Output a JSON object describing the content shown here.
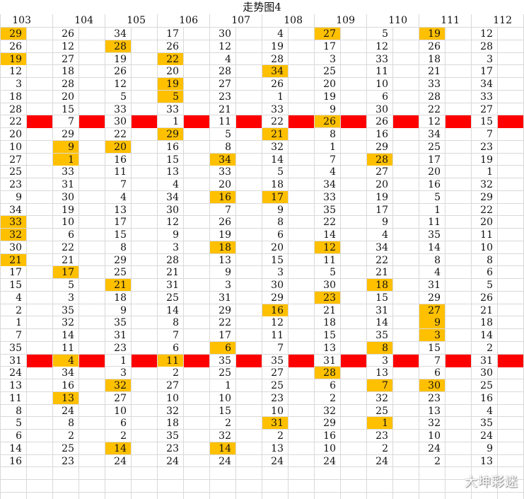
{
  "title": "走势图4",
  "columns": [
    "103",
    "104",
    "105",
    "106",
    "107",
    "108",
    "109",
    "110",
    "111",
    "112"
  ],
  "colors": {
    "highlight": "#FFC000",
    "bar": "#FF0000",
    "grid": "#D9D9D9"
  },
  "watermark": "大坤彩迷",
  "rows": [
    {
      "v": [
        "29",
        "26",
        "34",
        "17",
        "30",
        "4",
        "27",
        "5",
        "19",
        "12"
      ],
      "h": [
        0,
        6,
        8
      ]
    },
    {
      "v": [
        "26",
        "12",
        "28",
        "26",
        "12",
        "19",
        "17",
        "12",
        "26",
        "28"
      ],
      "h": [
        2
      ]
    },
    {
      "v": [
        "19",
        "27",
        "19",
        "22",
        "4",
        "28",
        "3",
        "33",
        "18",
        "3"
      ],
      "h": [
        0,
        3
      ]
    },
    {
      "v": [
        "12",
        "18",
        "26",
        "20",
        "28",
        "34",
        "25",
        "11",
        "21",
        "17"
      ],
      "h": [
        5
      ]
    },
    {
      "v": [
        "3",
        "28",
        "12",
        "19",
        "27",
        "26",
        "20",
        "10",
        "33",
        "34"
      ],
      "h": [
        3
      ]
    },
    {
      "v": [
        "18",
        "20",
        "5",
        "5",
        "23",
        "1",
        "19",
        "6",
        "28",
        "33"
      ],
      "h": [
        3
      ]
    },
    {
      "v": [
        "28",
        "15",
        "33",
        "33",
        "21",
        "33",
        "9",
        "30",
        "22",
        "27"
      ],
      "h": []
    },
    {
      "v": [
        "22",
        "7",
        "30",
        "1",
        "11",
        "22",
        "26",
        "26",
        "12",
        "15"
      ],
      "h": [
        6
      ],
      "bar": true
    },
    {
      "v": [
        "20",
        "29",
        "22",
        "29",
        "5",
        "21",
        "8",
        "16",
        "34",
        "7"
      ],
      "h": [
        3,
        5
      ]
    },
    {
      "v": [
        "10",
        "9",
        "20",
        "16",
        "8",
        "32",
        "1",
        "29",
        "25",
        "23"
      ],
      "h": [
        1,
        2
      ]
    },
    {
      "v": [
        "27",
        "1",
        "16",
        "15",
        "34",
        "14",
        "7",
        "28",
        "17",
        "19"
      ],
      "h": [
        1,
        4,
        7
      ]
    },
    {
      "v": [
        "25",
        "33",
        "11",
        "13",
        "33",
        "5",
        "4",
        "27",
        "20",
        "1"
      ],
      "h": []
    },
    {
      "v": [
        "23",
        "31",
        "7",
        "4",
        "20",
        "18",
        "34",
        "20",
        "16",
        "32"
      ],
      "h": []
    },
    {
      "v": [
        "9",
        "30",
        "4",
        "34",
        "16",
        "17",
        "33",
        "19",
        "5",
        "29"
      ],
      "h": [
        4,
        5
      ]
    },
    {
      "v": [
        "34",
        "19",
        "13",
        "30",
        "7",
        "9",
        "35",
        "17",
        "1",
        "22"
      ],
      "h": []
    },
    {
      "v": [
        "33",
        "10",
        "17",
        "12",
        "26",
        "8",
        "22",
        "9",
        "11",
        "20"
      ],
      "h": [
        0
      ]
    },
    {
      "v": [
        "32",
        "6",
        "15",
        "9",
        "19",
        "6",
        "14",
        "4",
        "35",
        "11"
      ],
      "h": [
        0
      ]
    },
    {
      "v": [
        "30",
        "22",
        "8",
        "3",
        "18",
        "20",
        "12",
        "34",
        "14",
        "10"
      ],
      "h": [
        4,
        6
      ]
    },
    {
      "v": [
        "21",
        "21",
        "29",
        "28",
        "13",
        "15",
        "11",
        "22",
        "8",
        "8"
      ],
      "h": [
        0
      ]
    },
    {
      "v": [
        "17",
        "17",
        "25",
        "21",
        "9",
        "3",
        "5",
        "21",
        "4",
        "6"
      ],
      "h": [
        1
      ]
    },
    {
      "v": [
        "15",
        "5",
        "21",
        "31",
        "3",
        "30",
        "30",
        "18",
        "31",
        "5"
      ],
      "h": [
        2,
        7
      ]
    },
    {
      "v": [
        "4",
        "3",
        "18",
        "25",
        "31",
        "29",
        "23",
        "15",
        "29",
        "26"
      ],
      "h": [
        6
      ]
    },
    {
      "v": [
        "2",
        "35",
        "9",
        "14",
        "29",
        "16",
        "21",
        "31",
        "27",
        "21"
      ],
      "h": [
        5,
        8
      ]
    },
    {
      "v": [
        "1",
        "32",
        "35",
        "8",
        "22",
        "12",
        "18",
        "14",
        "9",
        "18"
      ],
      "h": [
        8
      ]
    },
    {
      "v": [
        "7",
        "14",
        "31",
        "7",
        "17",
        "11",
        "15",
        "35",
        "3",
        "14"
      ],
      "h": [
        8
      ]
    },
    {
      "v": [
        "35",
        "11",
        "23",
        "6",
        "6",
        "7",
        "13",
        "8",
        "15",
        "2"
      ],
      "h": [
        4,
        7
      ]
    },
    {
      "v": [
        "31",
        "4",
        "1",
        "11",
        "35",
        "35",
        "31",
        "3",
        "7",
        "31"
      ],
      "h": [
        1,
        3
      ],
      "bar": true
    },
    {
      "v": [
        "24",
        "34",
        "3",
        "2",
        "25",
        "27",
        "28",
        "13",
        "6",
        "30"
      ],
      "h": [
        6
      ]
    },
    {
      "v": [
        "13",
        "16",
        "32",
        "27",
        "1",
        "25",
        "6",
        "7",
        "30",
        "25"
      ],
      "h": [
        2,
        7,
        8
      ]
    },
    {
      "v": [
        "11",
        "13",
        "27",
        "10",
        "10",
        "23",
        "2",
        "32",
        "23",
        "16"
      ],
      "h": [
        1
      ]
    },
    {
      "v": [
        "8",
        "24",
        "10",
        "32",
        "15",
        "10",
        "32",
        "25",
        "13",
        "4"
      ],
      "h": []
    },
    {
      "v": [
        "5",
        "8",
        "6",
        "18",
        "2",
        "31",
        "29",
        "1",
        "32",
        "35"
      ],
      "h": [
        5,
        7
      ]
    },
    {
      "v": [
        "6",
        "2",
        "2",
        "35",
        "32",
        "2",
        "16",
        "23",
        "10",
        "24"
      ],
      "h": []
    },
    {
      "v": [
        "14",
        "25",
        "14",
        "23",
        "14",
        "13",
        "10",
        "2",
        "24",
        "9"
      ],
      "h": [
        2,
        4
      ]
    },
    {
      "v": [
        "16",
        "23",
        "24",
        "24",
        "24",
        "24",
        "24",
        "24",
        "2",
        "13"
      ],
      "h": []
    }
  ]
}
